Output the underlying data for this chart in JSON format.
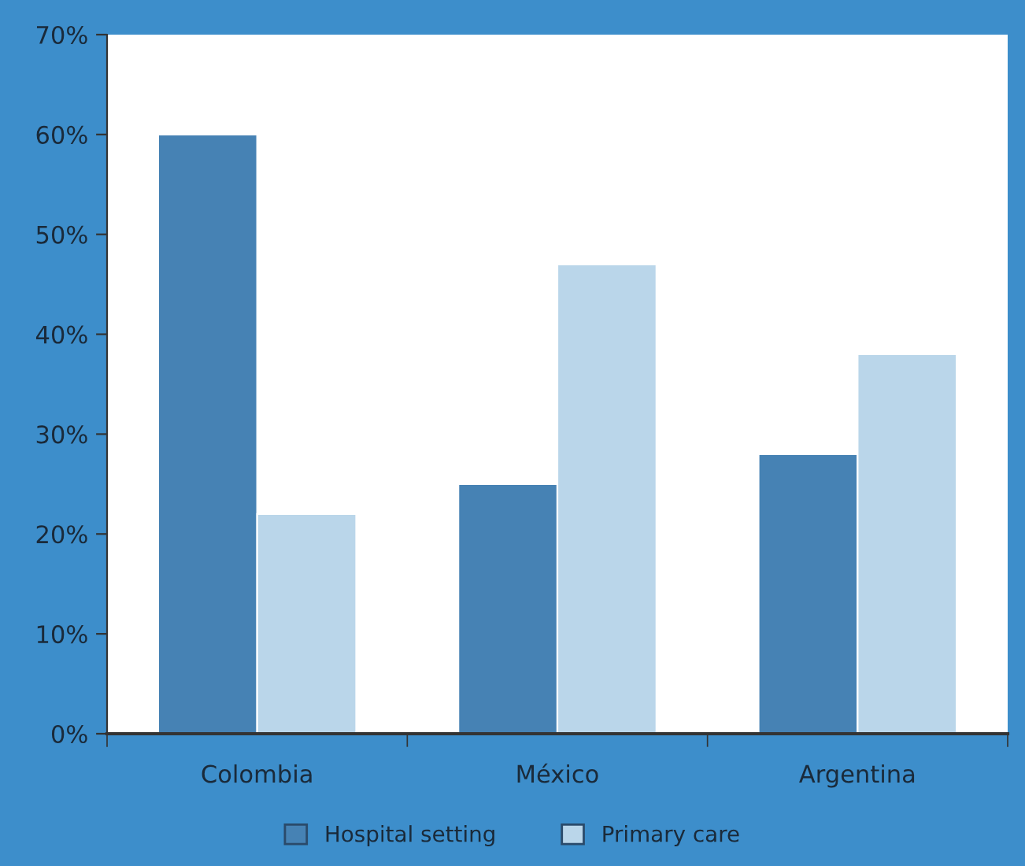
{
  "chart_data": {
    "type": "bar",
    "categories": [
      "Colombia",
      "México",
      "Argentina"
    ],
    "series": [
      {
        "name": "Hospital setting",
        "color": "#4682b4",
        "values": [
          60,
          25,
          28
        ]
      },
      {
        "name": "Primary care",
        "color": "#bad6ea",
        "values": [
          22,
          47,
          38
        ]
      }
    ],
    "ylim": [
      0,
      70
    ],
    "yticks": [
      {
        "value": 0,
        "label": "0%"
      },
      {
        "value": 10,
        "label": "10%"
      },
      {
        "value": 20,
        "label": "20%"
      },
      {
        "value": 30,
        "label": "30%"
      },
      {
        "value": 40,
        "label": "40%"
      },
      {
        "value": 50,
        "label": "50%"
      },
      {
        "value": 60,
        "label": "60%"
      },
      {
        "value": 70,
        "label": "70%"
      }
    ],
    "grid": false,
    "legend": "bottom"
  }
}
